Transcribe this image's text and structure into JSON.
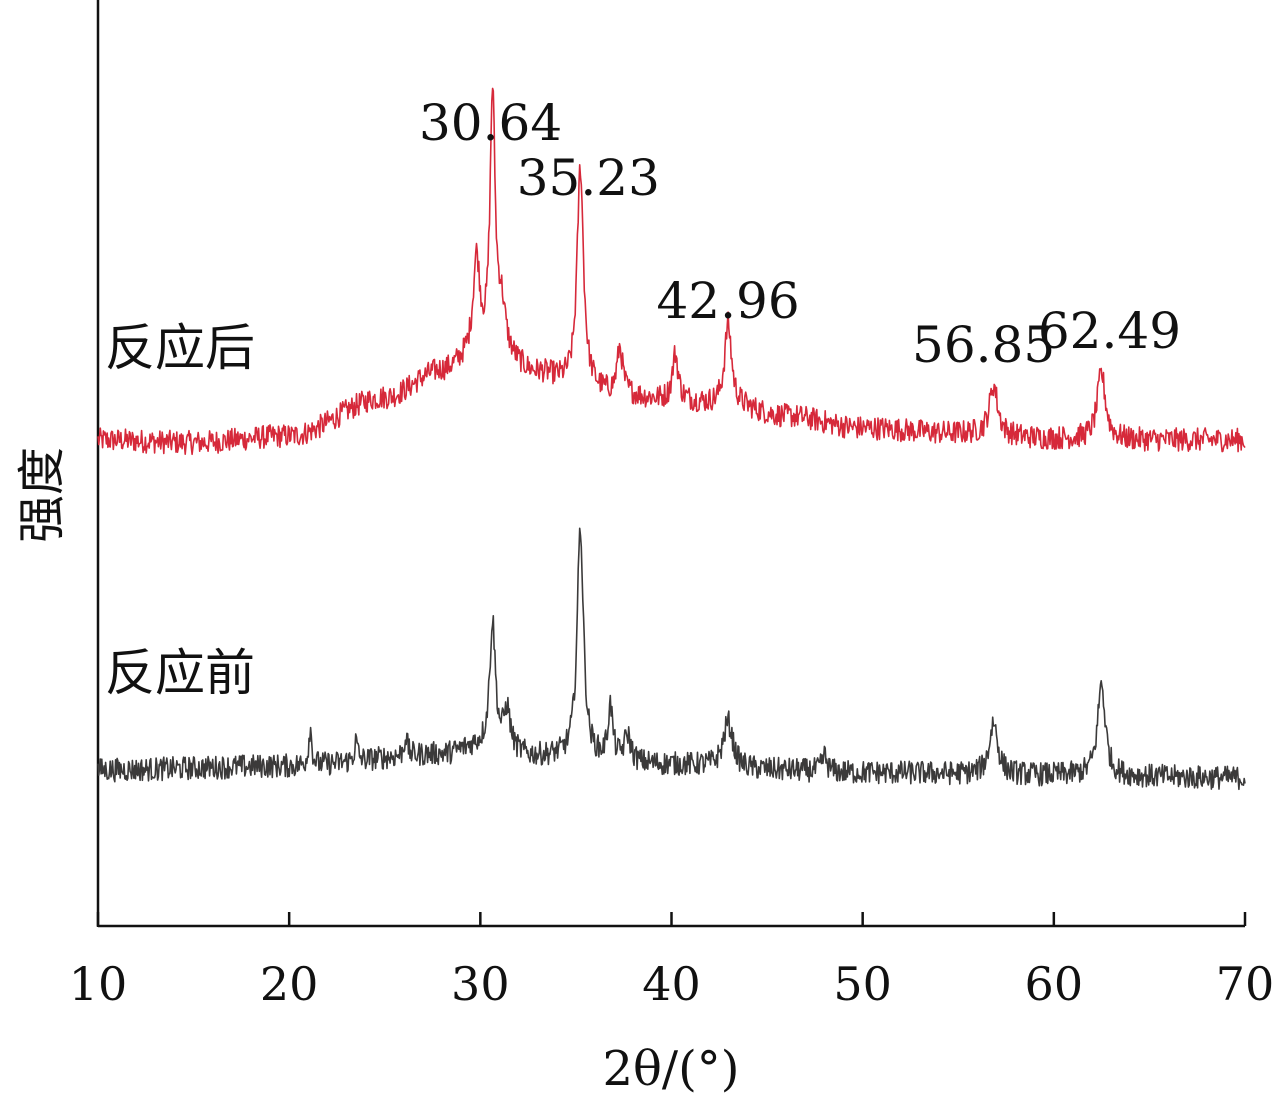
{
  "chart_data": {
    "type": "line",
    "title": "",
    "xlabel": "2θ/(°)",
    "ylabel": "强度",
    "xlim": [
      10,
      70
    ],
    "x_ticks": [
      10,
      20,
      30,
      40,
      50,
      60,
      70
    ],
    "x_tick_labels": [
      "10",
      "20",
      "30",
      "40",
      "50",
      "60",
      "70"
    ],
    "grid": false,
    "legend": "none",
    "series": [
      {
        "name": "反应后",
        "color": "#d6293a",
        "baseline": [
          [
            10,
            0.0
          ],
          [
            15,
            -0.02
          ],
          [
            20,
            0.03
          ],
          [
            25,
            0.32
          ],
          [
            28,
            0.52
          ],
          [
            29.5,
            0.6
          ],
          [
            31,
            0.62
          ],
          [
            33,
            0.5
          ],
          [
            35,
            0.42
          ],
          [
            37,
            0.34
          ],
          [
            40,
            0.3
          ],
          [
            43,
            0.26
          ],
          [
            46,
            0.18
          ],
          [
            50,
            0.09
          ],
          [
            55,
            0.05
          ],
          [
            60,
            0.01
          ],
          [
            65,
            0.0
          ],
          [
            70,
            0.0
          ]
        ],
        "peaks": [
          {
            "x": 29.8,
            "height": 0.75,
            "width": 0.22
          },
          {
            "x": 30.64,
            "height": 1.95,
            "width": 0.16
          },
          {
            "x": 31.1,
            "height": 0.35,
            "width": 0.25
          },
          {
            "x": 35.23,
            "height": 1.65,
            "width": 0.2
          },
          {
            "x": 37.3,
            "height": 0.35,
            "width": 0.18
          },
          {
            "x": 40.2,
            "height": 0.35,
            "width": 0.18
          },
          {
            "x": 42.96,
            "height": 0.62,
            "width": 0.22
          },
          {
            "x": 56.85,
            "height": 0.38,
            "width": 0.26
          },
          {
            "x": 62.49,
            "height": 0.5,
            "width": 0.26
          }
        ],
        "peak_labels": [
          {
            "x": 30.64,
            "text": "30.64"
          },
          {
            "x": 35.23,
            "text": "35.23"
          },
          {
            "x": 42.96,
            "text": "42.96"
          },
          {
            "x": 56.85,
            "text": "56.85"
          },
          {
            "x": 62.49,
            "text": "62.49"
          }
        ]
      },
      {
        "name": "反应前",
        "color": "#3b3a3a",
        "baseline": [
          [
            10,
            0.0
          ],
          [
            20,
            0.03
          ],
          [
            28,
            0.12
          ],
          [
            30,
            0.18
          ],
          [
            33,
            0.1
          ],
          [
            40,
            0.04
          ],
          [
            45,
            0.0
          ],
          [
            50,
            -0.02
          ],
          [
            60,
            -0.04
          ],
          [
            70,
            -0.06
          ]
        ],
        "peaks": [
          {
            "x": 21.1,
            "height": 0.28,
            "width": 0.1
          },
          {
            "x": 23.5,
            "height": 0.15,
            "width": 0.1
          },
          {
            "x": 26.1,
            "height": 0.15,
            "width": 0.1
          },
          {
            "x": 30.64,
            "height": 0.95,
            "width": 0.18
          },
          {
            "x": 31.4,
            "height": 0.3,
            "width": 0.2
          },
          {
            "x": 35.23,
            "height": 1.75,
            "width": 0.2
          },
          {
            "x": 36.8,
            "height": 0.4,
            "width": 0.15
          },
          {
            "x": 37.7,
            "height": 0.2,
            "width": 0.2
          },
          {
            "x": 42.96,
            "height": 0.35,
            "width": 0.3
          },
          {
            "x": 48.0,
            "height": 0.12,
            "width": 0.15
          },
          {
            "x": 56.85,
            "height": 0.4,
            "width": 0.26
          },
          {
            "x": 62.49,
            "height": 0.7,
            "width": 0.24
          }
        ]
      }
    ]
  }
}
